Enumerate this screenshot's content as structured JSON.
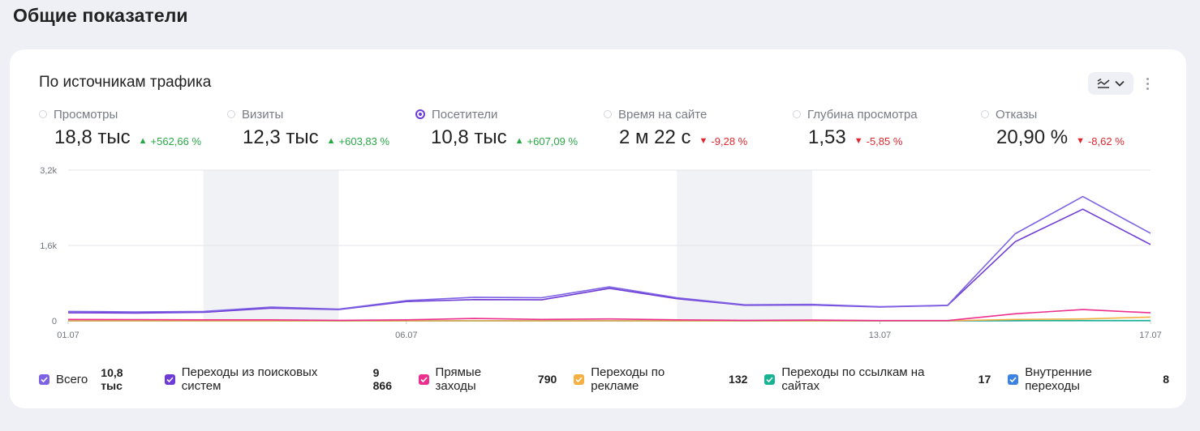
{
  "page": {
    "title": "Общие показатели"
  },
  "card": {
    "title": "По источникам трафика"
  },
  "metrics": [
    {
      "label": "Просмотры",
      "value": "18,8 тыс",
      "delta": "+562,66 %",
      "direction": "up",
      "selected": false
    },
    {
      "label": "Визиты",
      "value": "12,3 тыс",
      "delta": "+603,83 %",
      "direction": "up",
      "selected": false
    },
    {
      "label": "Посетители",
      "value": "10,8 тыс",
      "delta": "+607,09 %",
      "direction": "up",
      "selected": true
    },
    {
      "label": "Время на сайте",
      "value": "2 м 22 с",
      "delta": "-9,28 %",
      "direction": "down",
      "selected": false
    },
    {
      "label": "Глубина просмотра",
      "value": "1,53",
      "delta": "-5,85 %",
      "direction": "down",
      "selected": false
    },
    {
      "label": "Отказы",
      "value": "20,90 %",
      "delta": "-8,62 %",
      "direction": "down",
      "selected": false
    }
  ],
  "icons": {
    "view_toggle": "line-chart-icon",
    "dropdown": "chevron-down-icon",
    "more": "more-vertical-icon"
  },
  "colors": {
    "accent": "#6c3bd9",
    "up": "#28a745",
    "down": "#e0262e"
  },
  "legend": [
    {
      "label": "Всего",
      "value": "10,8 тыс",
      "color": "#7d63e3"
    },
    {
      "label": "Переходы из поисковых систем",
      "value": "9 866",
      "color": "#6f3bd6"
    },
    {
      "label": "Прямые заходы",
      "value": "790",
      "color": "#ec2f8e"
    },
    {
      "label": "Переходы по рекламе",
      "value": "132",
      "color": "#f5b041"
    },
    {
      "label": "Переходы по ссылкам на сайтах",
      "value": "17",
      "color": "#18b393"
    },
    {
      "label": "Внутренние переходы",
      "value": "8",
      "color": "#3b82e3"
    }
  ],
  "chart_data": {
    "type": "line",
    "x": [
      "01.07",
      "02.07",
      "03.07",
      "04.07",
      "05.07",
      "06.07",
      "07.07",
      "08.07",
      "09.07",
      "10.07",
      "11.07",
      "12.07",
      "13.07",
      "14.07",
      "15.07",
      "16.07",
      "17.07"
    ],
    "x_tick_labels": [
      "01.07",
      "06.07",
      "13.07",
      "17.07"
    ],
    "y_tick_labels": [
      "0",
      "1,6k",
      "3,2k"
    ],
    "ylim": [
      0,
      3200
    ],
    "weekend_bands": [
      [
        "03.07",
        "05.07"
      ],
      [
        "10.07",
        "12.07"
      ]
    ],
    "series": [
      {
        "name": "Всего",
        "color": "#7d63e3",
        "values": [
          200,
          190,
          200,
          290,
          250,
          430,
          500,
          490,
          720,
          490,
          340,
          350,
          300,
          330,
          1850,
          2640,
          1860
        ]
      },
      {
        "name": "Переходы из поисковых систем",
        "color": "#6f3bd6",
        "values": [
          170,
          165,
          180,
          270,
          240,
          410,
          450,
          445,
          690,
          470,
          330,
          335,
          295,
          325,
          1680,
          2370,
          1620
        ]
      },
      {
        "name": "Прямые заходы",
        "color": "#ec2f8e",
        "values": [
          30,
          25,
          20,
          20,
          10,
          20,
          50,
          30,
          40,
          20,
          10,
          15,
          5,
          5,
          150,
          240,
          170
        ]
      },
      {
        "name": "Переходы по рекламе",
        "color": "#f5b041",
        "values": [
          0,
          0,
          0,
          0,
          0,
          0,
          0,
          0,
          0,
          0,
          0,
          0,
          0,
          0,
          30,
          40,
          80
        ]
      },
      {
        "name": "Переходы по ссылкам на сайтах",
        "color": "#18b393",
        "values": [
          0,
          0,
          0,
          0,
          0,
          0,
          0,
          0,
          0,
          0,
          0,
          0,
          0,
          0,
          5,
          5,
          5
        ]
      },
      {
        "name": "Внутренние переходы",
        "color": "#3b82e3",
        "values": [
          0,
          0,
          0,
          0,
          0,
          0,
          0,
          0,
          0,
          0,
          0,
          0,
          0,
          0,
          2,
          3,
          3
        ]
      }
    ]
  }
}
